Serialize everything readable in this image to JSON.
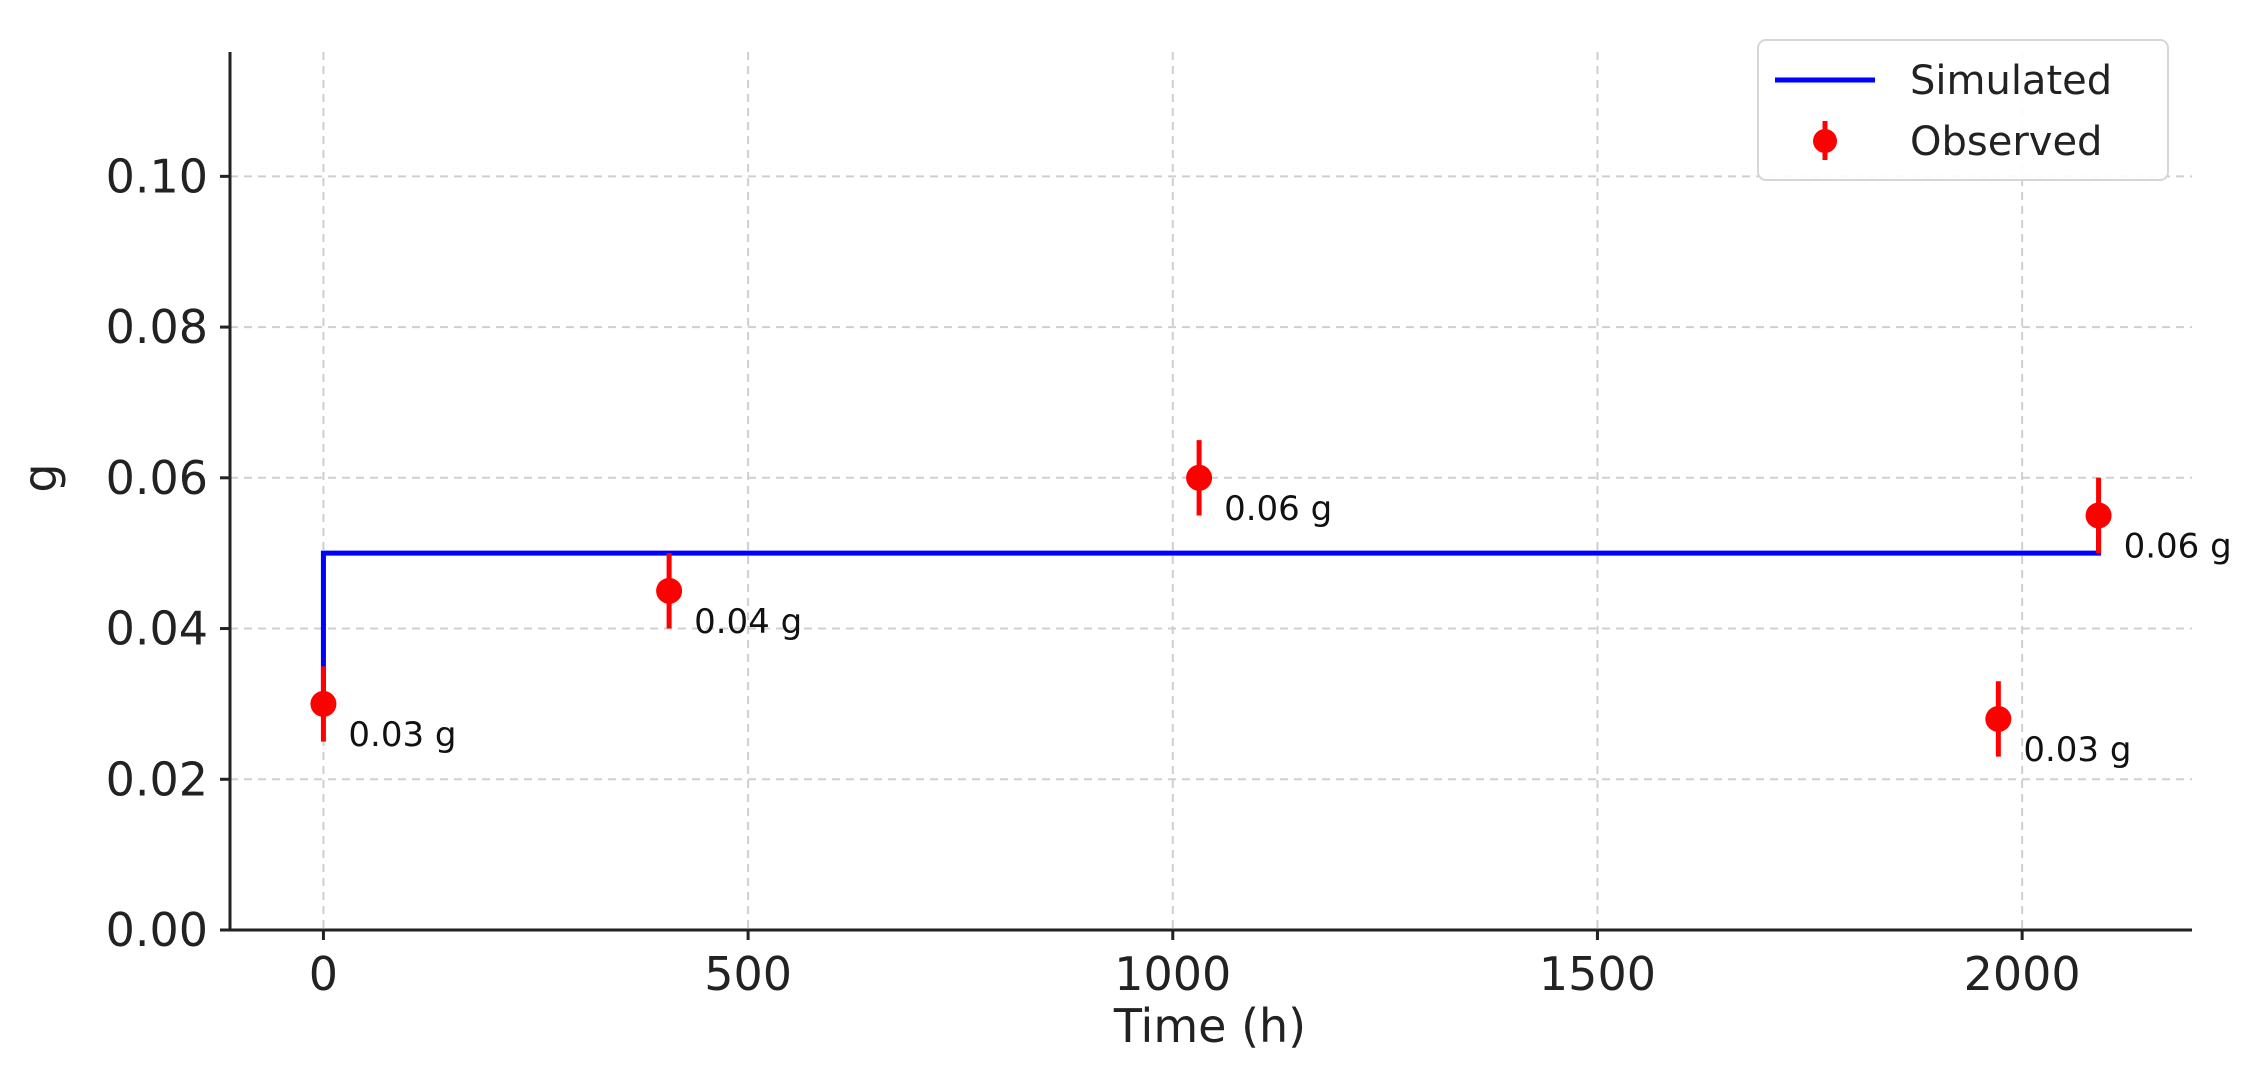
{
  "chart_data": {
    "type": "line",
    "title": "",
    "xlabel": "Time (h)",
    "ylabel": "g",
    "xlim": [
      -110,
      2200
    ],
    "ylim": [
      0,
      0.1165
    ],
    "xticks": [
      0,
      500,
      1000,
      1500,
      2000
    ],
    "xtick_labels": [
      "0",
      "500",
      "1000",
      "1500",
      "2000"
    ],
    "yticks": [
      0,
      0.02,
      0.04,
      0.06,
      0.08,
      0.1
    ],
    "ytick_labels": [
      "0.00",
      "0.02",
      "0.04",
      "0.06",
      "0.08",
      "0.10"
    ],
    "grid": true,
    "legend_position": "top-right",
    "series": [
      {
        "name": "Simulated",
        "kind": "step-line",
        "color": "#0000ff",
        "x": [
          0,
          0,
          2090,
          2090
        ],
        "y": [
          0.03,
          0.05,
          0.05,
          0.055
        ]
      },
      {
        "name": "Observed",
        "kind": "errorbar-scatter",
        "color": "#ff0000",
        "x": [
          0,
          407,
          1031,
          1972,
          2090
        ],
        "y": [
          0.03,
          0.045,
          0.06,
          0.028,
          0.055
        ],
        "yerr": [
          0.005,
          0.005,
          0.005,
          0.005,
          0.005
        ],
        "labels": [
          "0.03 g",
          "0.04 g",
          "0.06 g",
          "0.03 g",
          "0.06 g"
        ]
      }
    ]
  }
}
